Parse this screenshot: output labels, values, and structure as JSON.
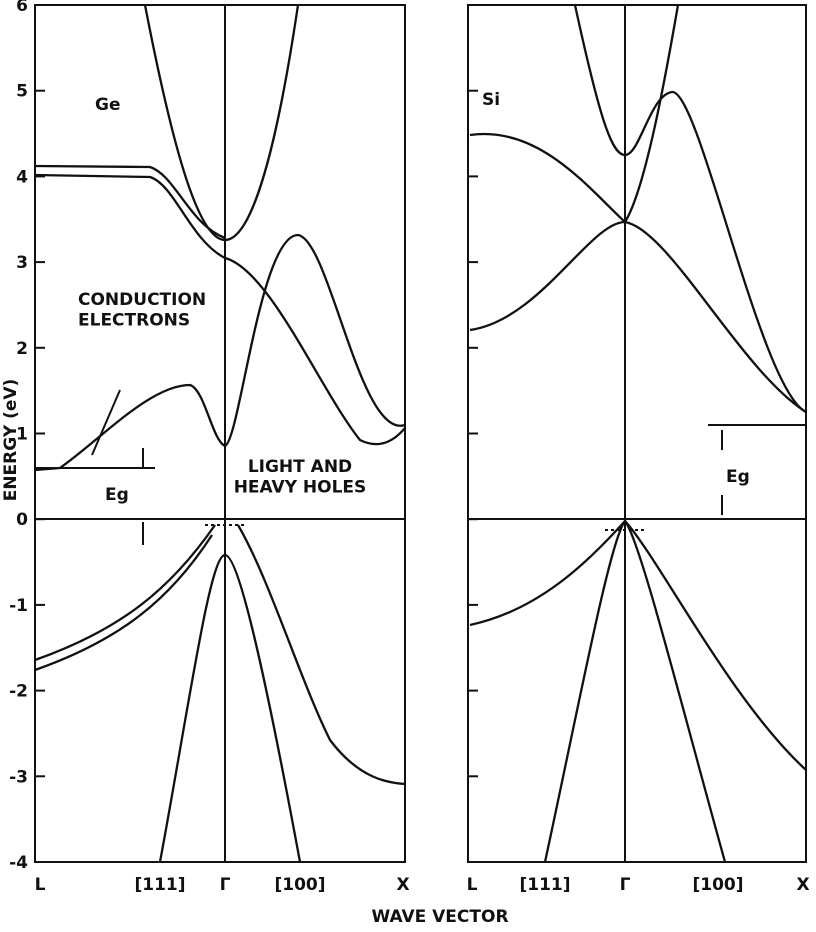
{
  "y_axis": {
    "label": "ENERGY (eV)",
    "ticks": [
      6,
      5,
      4,
      3,
      2,
      1,
      0,
      -1,
      -2,
      -3,
      -4
    ]
  },
  "panels": [
    {
      "material": "Ge",
      "x_labels": [
        "L",
        "[111]",
        "Γ",
        "[100]",
        "X"
      ],
      "annotations": {
        "conduction": "CONDUCTION\nELECTRONS",
        "gap": "Eg",
        "holes": "LIGHT AND\nHEAVY HOLES"
      }
    },
    {
      "material": "Si",
      "x_labels": [
        "L",
        "[111]",
        "Γ",
        "[100]",
        "X"
      ],
      "annotations": {
        "gap": "Eg"
      }
    }
  ],
  "x_axis": {
    "label": "WAVE VECTOR"
  }
}
